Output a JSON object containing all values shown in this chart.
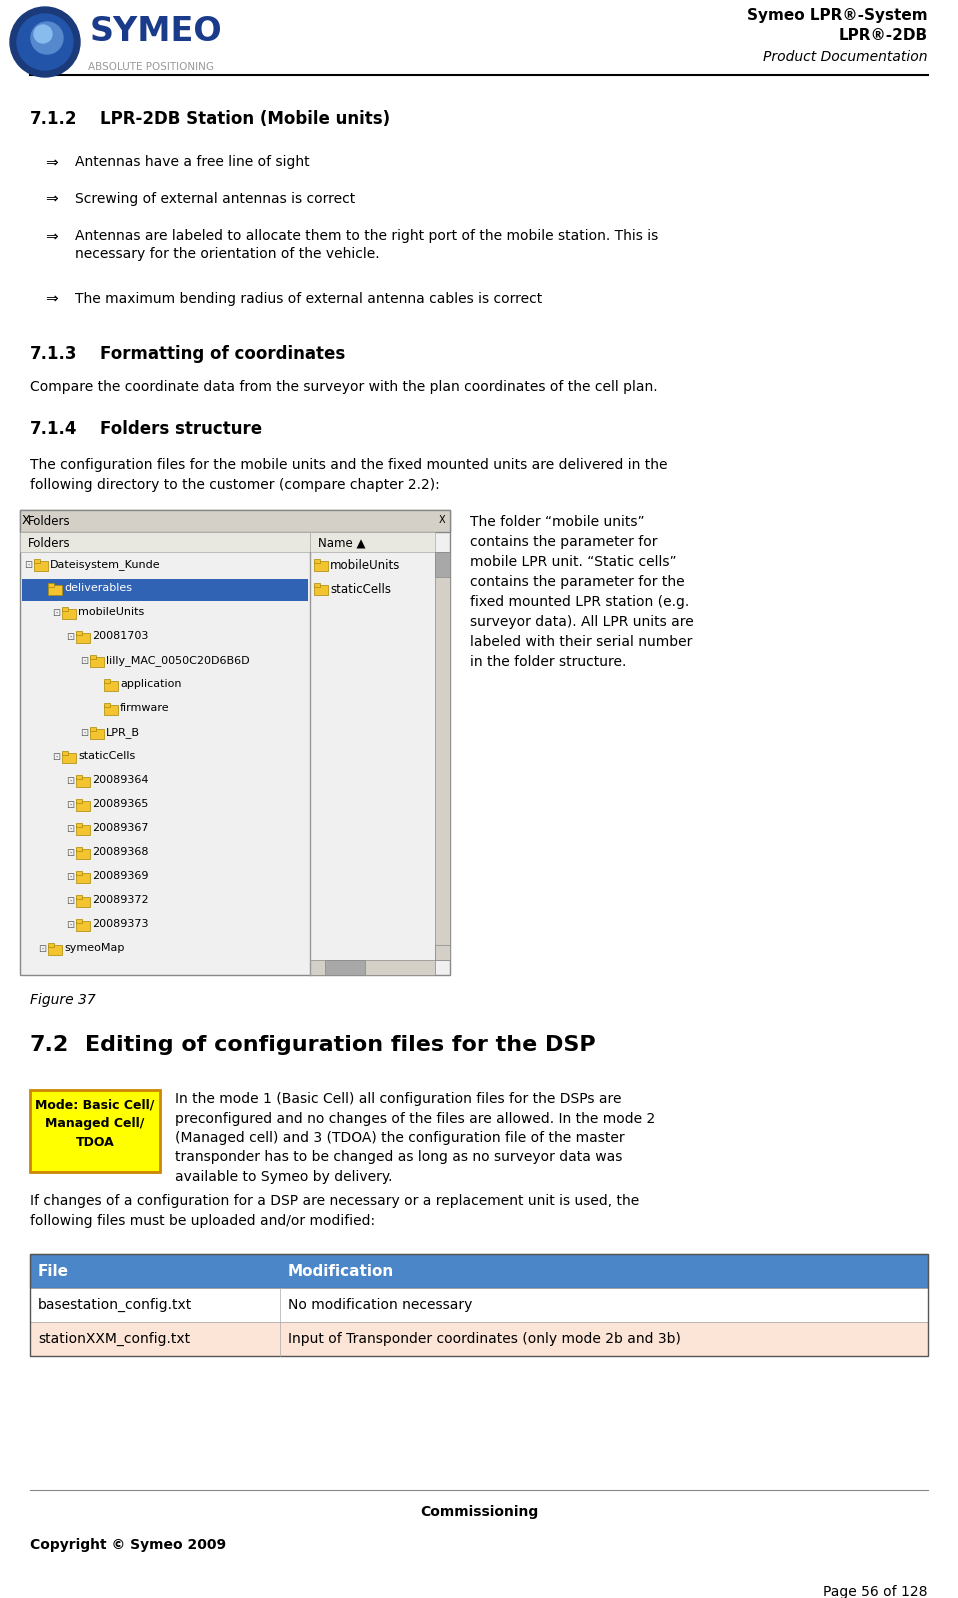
{
  "page_width": 9.58,
  "page_height": 15.98,
  "dpi": 100,
  "bg_color": "#ffffff",
  "header": {
    "logo_text": "SYMEO",
    "logo_subtext": "ABSOLUTE POSITIONING",
    "right_line1": "Symeo LPR®-System",
    "right_line2": "LPR®-2DB",
    "right_line3": "Product Documentation"
  },
  "section_712": {
    "number": "7.1.2",
    "title": "LPR-2DB Station (Mobile units)",
    "bullets": [
      "Antennas have a free line of sight",
      "Screwing of external antennas is correct",
      "Antennas are labeled to allocate them to the right port of the mobile station. This is\nnecessary for the orientation of the vehicle.",
      "The maximum bending radius of external antenna cables is correct"
    ]
  },
  "section_713": {
    "number": "7.1.3",
    "title": "Formatting of coordinates",
    "text": "Compare the coordinate data from the surveyor with the plan coordinates of the cell plan."
  },
  "section_714": {
    "number": "7.1.4",
    "title": "Folders structure",
    "text": "The configuration files for the mobile units and the fixed mounted units are delivered in the\nfollowing directory to the customer (compare chapter 2.2):"
  },
  "figure_caption": "Figure 37",
  "figure_note": "The folder “mobile units”\ncontains the parameter for\nmobile LPR unit. “Static cells”\ncontains the parameter for the\nfixed mounted LPR station (e.g.\nsurveyor data). All LPR units are\nlabeled with their serial number\nin the folder structure.",
  "tree_items": [
    [
      0,
      "Dateisystem_Kunde",
      false
    ],
    [
      1,
      "deliverables",
      true
    ],
    [
      2,
      "mobileUnits",
      false
    ],
    [
      3,
      "20081703",
      false
    ],
    [
      4,
      "lilly_MAC_0050C20D6B6D",
      false
    ],
    [
      5,
      "application",
      false
    ],
    [
      5,
      "firmware",
      false
    ],
    [
      4,
      "LPR_B",
      false
    ],
    [
      2,
      "staticCells",
      false
    ],
    [
      3,
      "20089364",
      false
    ],
    [
      3,
      "20089365",
      false
    ],
    [
      3,
      "20089367",
      false
    ],
    [
      3,
      "20089368",
      false
    ],
    [
      3,
      "20089369",
      false
    ],
    [
      3,
      "20089372",
      false
    ],
    [
      3,
      "20089373",
      false
    ],
    [
      1,
      "symeoMap",
      false
    ]
  ],
  "right_panel_items": [
    "mobileUnits",
    "staticCells"
  ],
  "section_72": {
    "number": "7.2",
    "title": "Editing of configuration files for the DSP",
    "mode_box_text": "Mode: Basic Cell/\nManaged Cell/\nTDOA",
    "mode_box_bg": "#ffff00",
    "mode_box_border": "#cc8800",
    "paragraph": "In the mode 1 (Basic Cell) all configuration files for the DSPs are\npreconfigured and no changes of the files are allowed. In the mode 2\n(Managed cell) and 3 (TDOA) the configuration file of the master\ntransponder has to be changed as long as no surveyor data was\navailable to Symeo by delivery.",
    "paragraph2": "If changes of a configuration for a DSP are necessary or a replacement unit is used, the\nfollowing files must be uploaded and/or modified:"
  },
  "table": {
    "header_bg": "#4a86c8",
    "header_text_color": "#ffffff",
    "row1_bg": "#ffffff",
    "row2_bg": "#fce4d6",
    "col1_header": "File",
    "col2_header": "Modification",
    "rows": [
      [
        "basestation_config.txt",
        "No modification necessary"
      ],
      [
        "stationXXM_config.txt",
        "Input of Transponder coordinates (only mode 2b and 3b)"
      ]
    ]
  },
  "footer": {
    "center_text": "Commissioning",
    "left_text": "Copyright © Symeo 2009",
    "right_text": "Page 56 of 128"
  }
}
